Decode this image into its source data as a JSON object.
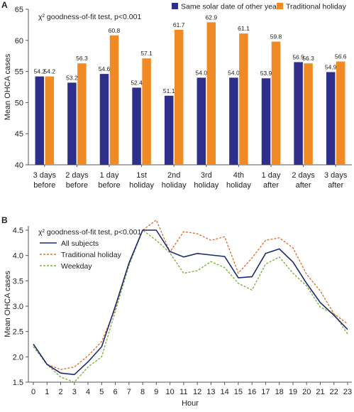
{
  "chart_data": [
    {
      "panel_label": "A",
      "type": "bar",
      "annotation": "χ² goodness-of-fit test, p<0.001",
      "ylabel": "Mean OHCA cases",
      "xlabel": "",
      "ylim": [
        40,
        65
      ],
      "yticks": [
        40,
        45,
        50,
        55,
        60,
        65
      ],
      "legend_position": "top-right",
      "categories": [
        [
          "3 days",
          "before"
        ],
        [
          "2 days",
          "before"
        ],
        [
          "1 day",
          "before"
        ],
        [
          "1st",
          "holiday"
        ],
        [
          "2nd",
          "holiday"
        ],
        [
          "3rd",
          "holiday"
        ],
        [
          "4th",
          "holiday"
        ],
        [
          "1 day",
          "after"
        ],
        [
          "2 days",
          "after"
        ],
        [
          "3 days",
          "after"
        ]
      ],
      "series": [
        {
          "name": "Same solar date of other years",
          "color": "#2e2f8a",
          "values": [
            54.2,
            53.2,
            54.6,
            52.4,
            51.1,
            54.0,
            54.0,
            53.9,
            56.5,
            54.9
          ]
        },
        {
          "name": "Traditional holiday",
          "color": "#f08a24",
          "values": [
            54.2,
            56.3,
            60.8,
            57.1,
            61.7,
            62.9,
            61.1,
            59.8,
            56.3,
            56.6
          ]
        }
      ]
    },
    {
      "panel_label": "B",
      "type": "line",
      "annotation": "χ² goodness-of-fit test, p<0.001",
      "ylabel": "Mean OHCA cases",
      "xlabel": "Hour",
      "ylim": [
        1.5,
        4.5
      ],
      "yticks": [
        "1.5",
        "2.0",
        "2.5",
        "3.0",
        "3.5",
        "4.0",
        "4.5"
      ],
      "x": [
        0,
        1,
        2,
        3,
        4,
        5,
        6,
        7,
        8,
        9,
        10,
        11,
        12,
        13,
        14,
        15,
        16,
        17,
        18,
        19,
        20,
        21,
        22,
        23
      ],
      "legend_position": "top-left",
      "series": [
        {
          "name": "All subjects",
          "color": "#1f2a6e",
          "dash": "solid",
          "values": [
            2.25,
            1.85,
            1.68,
            1.65,
            1.9,
            2.2,
            3.0,
            3.85,
            4.5,
            4.5,
            4.08,
            3.97,
            4.04,
            4.01,
            3.98,
            3.56,
            3.58,
            4.04,
            4.13,
            3.87,
            3.45,
            3.07,
            2.82,
            2.54
          ]
        },
        {
          "name": "Traditional holiday",
          "color": "#e8702a",
          "dash": "dash",
          "values": [
            2.25,
            1.85,
            1.75,
            1.8,
            2.02,
            2.3,
            2.95,
            3.85,
            4.5,
            4.7,
            4.07,
            4.47,
            4.43,
            4.3,
            4.37,
            3.65,
            3.95,
            4.3,
            4.35,
            4.15,
            3.63,
            3.3,
            2.85,
            2.65
          ]
        },
        {
          "name": "Weekday",
          "color": "#7fb33a",
          "dash": "dash",
          "values": [
            2.2,
            1.85,
            1.6,
            1.5,
            1.8,
            2.0,
            2.9,
            3.8,
            4.5,
            4.3,
            4.05,
            3.65,
            3.7,
            3.88,
            3.76,
            3.45,
            3.32,
            3.83,
            3.97,
            3.65,
            3.4,
            2.98,
            2.85,
            2.45
          ]
        }
      ]
    }
  ]
}
